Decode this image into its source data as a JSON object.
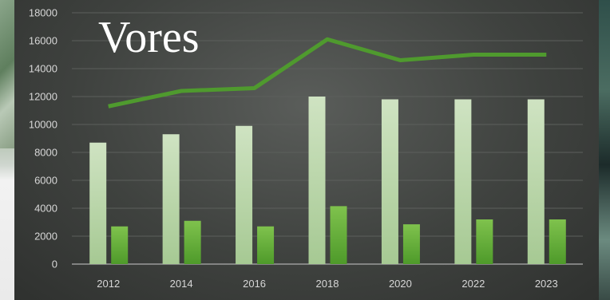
{
  "chart_data": {
    "type": "bar",
    "title": "Vores",
    "categories": [
      "2012",
      "2014",
      "2016",
      "2018",
      "2020",
      "2022",
      "2023"
    ],
    "series": [
      {
        "kind": "bar",
        "values": [
          8700,
          9300,
          9900,
          12000,
          11800,
          11800,
          11800
        ],
        "color": "#b9d6a8"
      },
      {
        "kind": "bar",
        "values": [
          2700,
          3100,
          2700,
          4150,
          2850,
          3200,
          3200
        ],
        "color": "#6cb33f"
      },
      {
        "kind": "line",
        "values": [
          11300,
          12400,
          12600,
          16100,
          14600,
          15000,
          15000
        ],
        "color": "#4f9a2e"
      }
    ],
    "ylim": [
      0,
      18000
    ],
    "yticks": [
      0,
      2000,
      4000,
      6000,
      8000,
      10000,
      12000,
      14000,
      16000,
      18000
    ],
    "grid": true,
    "legend": "none"
  }
}
